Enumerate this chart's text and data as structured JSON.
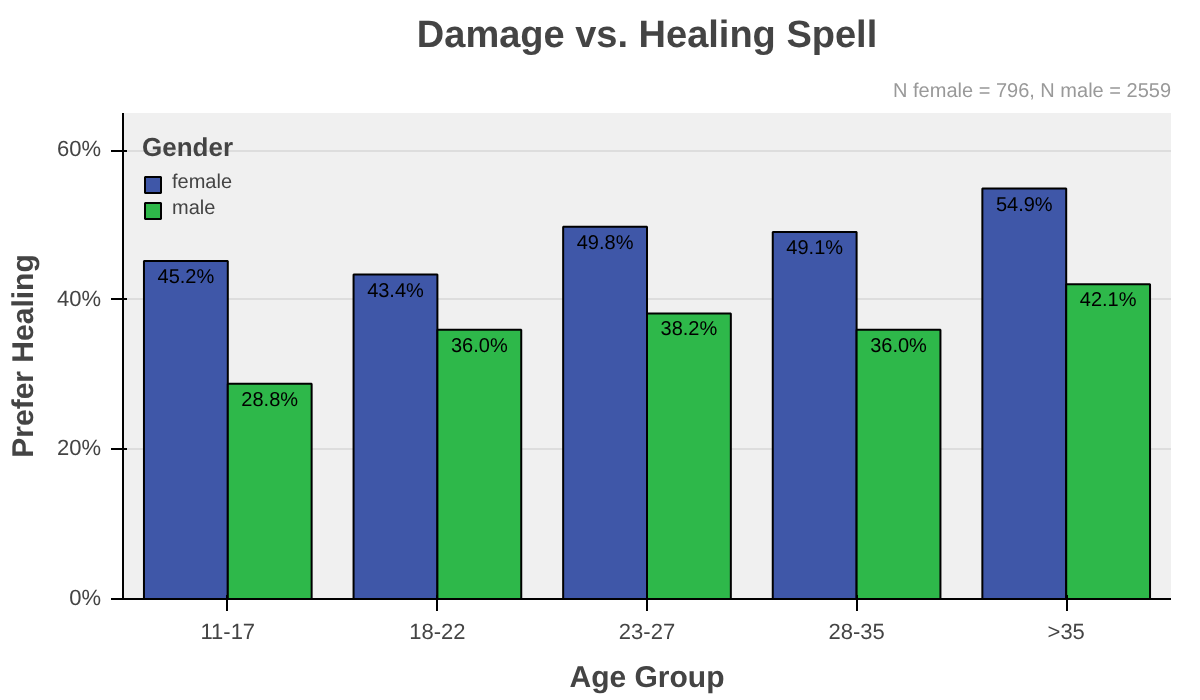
{
  "chart_data": {
    "type": "bar",
    "title": "Damage vs. Healing Spell",
    "xlabel": "Age Group",
    "ylabel": "Prefer Healing",
    "legend_title": "Gender",
    "annotations": [
      "N female = 796, N male = 2559"
    ],
    "categories": [
      "11-17",
      "18-22",
      "23-27",
      "28-35",
      ">35"
    ],
    "series": [
      {
        "name": "female",
        "color": "#3f57a8",
        "values": [
          45.2,
          43.4,
          49.8,
          49.1,
          54.9
        ],
        "value_labels": [
          "45.2%",
          "43.4%",
          "49.8%",
          "49.1%",
          "54.9%"
        ]
      },
      {
        "name": "male",
        "color": "#2eb84a",
        "values": [
          28.8,
          36.0,
          38.2,
          36.0,
          42.1
        ],
        "value_labels": [
          "28.8%",
          "36.0%",
          "38.2%",
          "36.0%",
          "42.1%"
        ]
      }
    ],
    "ylim": [
      0,
      65
    ],
    "yticks": [
      {
        "value": 0,
        "label": "0%"
      },
      {
        "value": 20,
        "label": "20%"
      },
      {
        "value": 40,
        "label": "40%"
      },
      {
        "value": 60,
        "label": "60%"
      }
    ],
    "grid": "y",
    "legend": "top left"
  }
}
